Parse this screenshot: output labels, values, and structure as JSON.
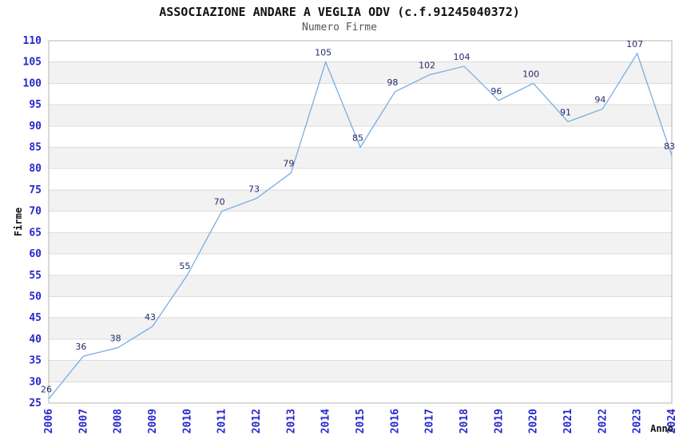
{
  "header": {
    "title": "ASSOCIAZIONE ANDARE A VEGLIA ODV (c.f.91245040372)",
    "subtitle": "Numero Firme"
  },
  "chart_data": {
    "type": "line",
    "title": "ASSOCIAZIONE ANDARE A VEGLIA ODV (c.f.91245040372)",
    "subtitle": "Numero Firme",
    "xlabel": "Anno",
    "ylabel": "Firme",
    "categories": [
      "2006",
      "2007",
      "2008",
      "2009",
      "2010",
      "2011",
      "2012",
      "2013",
      "2014",
      "2015",
      "2016",
      "2017",
      "2018",
      "2019",
      "2020",
      "2021",
      "2022",
      "2023",
      "2024"
    ],
    "values": [
      26,
      36,
      38,
      43,
      55,
      70,
      73,
      79,
      105,
      85,
      98,
      102,
      104,
      96,
      100,
      91,
      94,
      107,
      83
    ],
    "ylim": [
      25,
      110
    ],
    "ytick_step": 5,
    "yticks": [
      25,
      30,
      35,
      40,
      45,
      50,
      55,
      60,
      65,
      70,
      75,
      80,
      85,
      90,
      95,
      100,
      105,
      110
    ],
    "grid": true,
    "legend_position": "none",
    "value_labels_shown": true,
    "colors": {
      "line": "#79ade2",
      "value_label": "#28286e",
      "tick_label": "#2727ce",
      "band_fill": "#f2f2f2",
      "grid_line": "#dcdcdc",
      "plot_border": "#b5b5b5",
      "title": "#111111",
      "subtitle": "#555555",
      "axis_label": "#111111",
      "background": "#ffffff"
    }
  }
}
